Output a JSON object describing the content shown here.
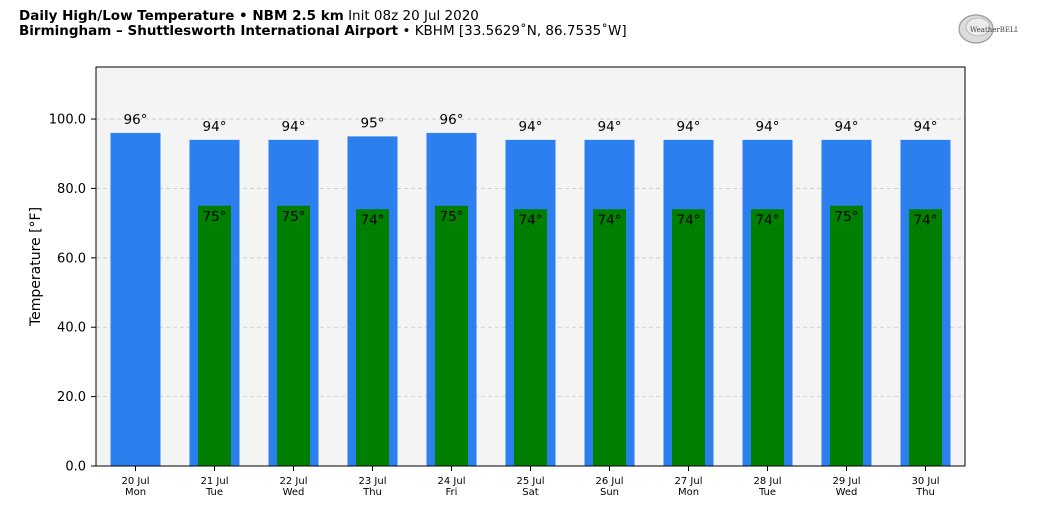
{
  "header": {
    "title_bold": "Daily High/Low Temperature • NBM 2.5 km",
    "title_init": "Init 08z 20 Jul 2020",
    "location_bold": "Birmingham – Shuttlesworth International Airport",
    "location_detail": "• KBHM [33.5629˚N, 86.7535˚W]",
    "logo_text": "WeatherBELL"
  },
  "colors": {
    "plot_background": "#f4f4f4",
    "high_bar": "#2b7fee",
    "low_bar": "#007f00",
    "grid": "#c8c8c8"
  },
  "chart_data": {
    "type": "bar",
    "ylabel": "Temperature [°F]",
    "ylim": [
      0,
      115
    ],
    "yticks": [
      "0.0",
      "20.0",
      "40.0",
      "60.0",
      "80.0",
      "100.0"
    ],
    "ytick_values": [
      0,
      20,
      40,
      60,
      80,
      100
    ],
    "grid": true,
    "categories_date": [
      "20 Jul",
      "21 Jul",
      "22 Jul",
      "23 Jul",
      "24 Jul",
      "25 Jul",
      "26 Jul",
      "27 Jul",
      "28 Jul",
      "29 Jul",
      "30 Jul"
    ],
    "categories_day": [
      "Mon",
      "Tue",
      "Wed",
      "Thu",
      "Fri",
      "Sat",
      "Sun",
      "Mon",
      "Tue",
      "Wed",
      "Thu"
    ],
    "series": [
      {
        "values": [
          96,
          94,
          94,
          95,
          96,
          94,
          94,
          94,
          94,
          94,
          94
        ],
        "labels": [
          "96°",
          "94°",
          "94°",
          "95°",
          "96°",
          "94°",
          "94°",
          "94°",
          "94°",
          "94°",
          "94°"
        ]
      },
      {
        "values": [
          null,
          75,
          75,
          74,
          75,
          74,
          74,
          74,
          74,
          75,
          74
        ],
        "labels": [
          "",
          "75°",
          "75°",
          "74°",
          "75°",
          "74°",
          "74°",
          "74°",
          "74°",
          "75°",
          "74°"
        ]
      }
    ]
  }
}
